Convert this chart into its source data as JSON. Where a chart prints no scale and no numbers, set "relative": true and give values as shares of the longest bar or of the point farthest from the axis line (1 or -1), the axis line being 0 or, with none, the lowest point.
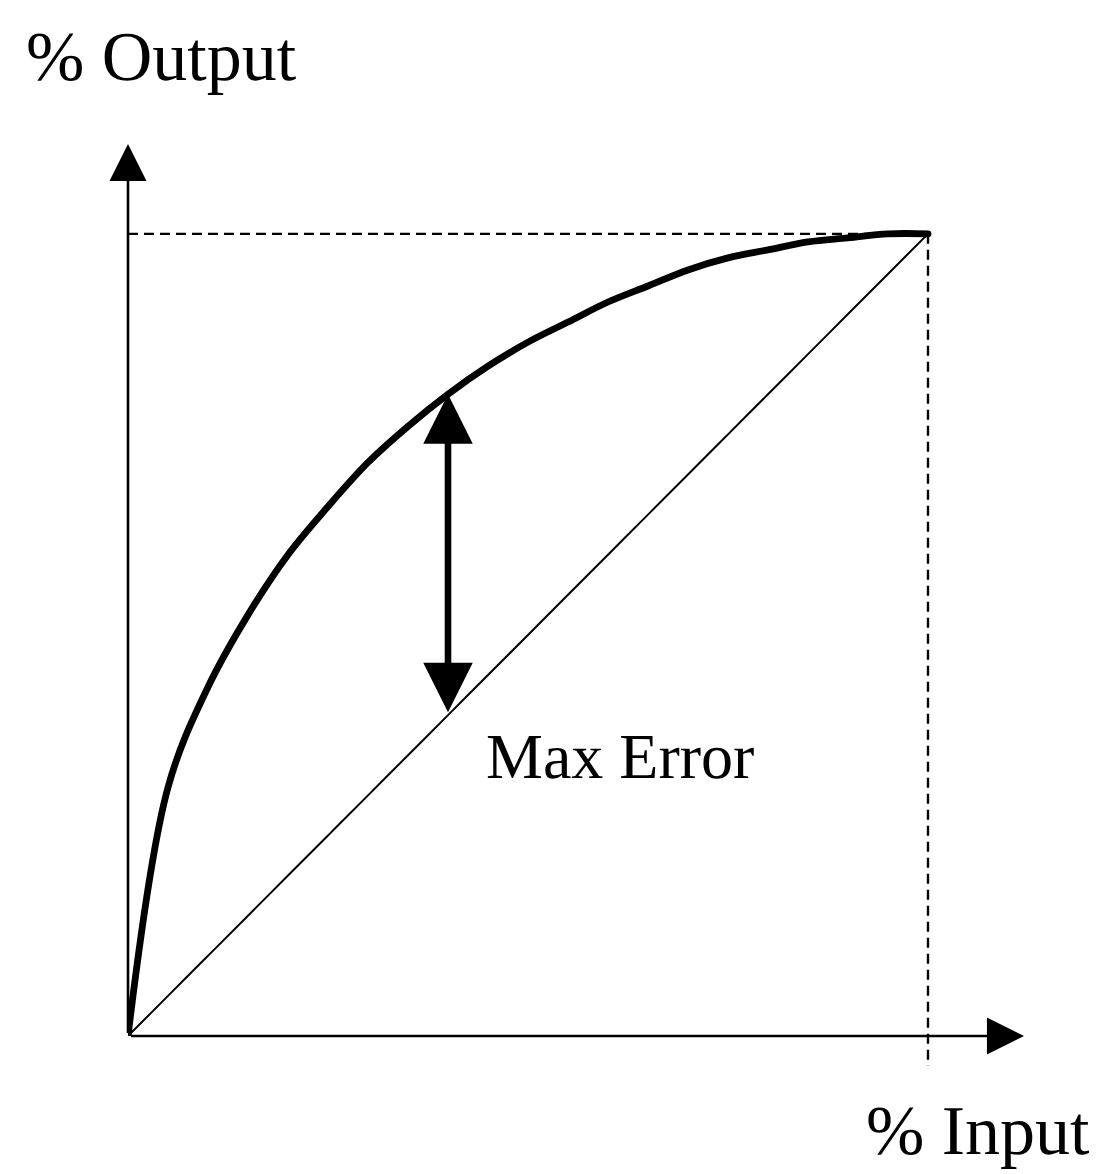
{
  "chart_data": {
    "type": "line",
    "relative": true,
    "xlabel": "% Input",
    "ylabel": "% Output",
    "categories": [
      null,
      null,
      null,
      null,
      null,
      null,
      null,
      null,
      null,
      null,
      null,
      null,
      null,
      null,
      null,
      null,
      null,
      null,
      null,
      null,
      null
    ],
    "series": [
      {
        "color": "#000000",
        "values": [
          0,
          0.31,
          0.435,
          0.525,
          0.6,
          0.66,
          0.715,
          0.76,
          0.8,
          0.835,
          0.865,
          0.89,
          0.915,
          0.935,
          0.955,
          0.97,
          0.98,
          0.99,
          0.995,
          1,
          1
        ]
      },
      {
        "color": "#000000",
        "values": [
          0,
          0.05,
          0.1,
          0.15,
          0.2,
          0.25,
          0.3,
          0.35,
          0.4,
          0.45,
          0.5,
          0.55,
          0.6,
          0.65,
          0.7,
          0.75,
          0.8,
          0.85,
          0.9,
          0.95,
          1
        ]
      }
    ],
    "ref_lines": [
      {
        "axis": "y",
        "value": 1,
        "line_style": "dashed",
        "color": "#000000"
      }
    ],
    "annotations": [
      "Max Error"
    ]
  }
}
